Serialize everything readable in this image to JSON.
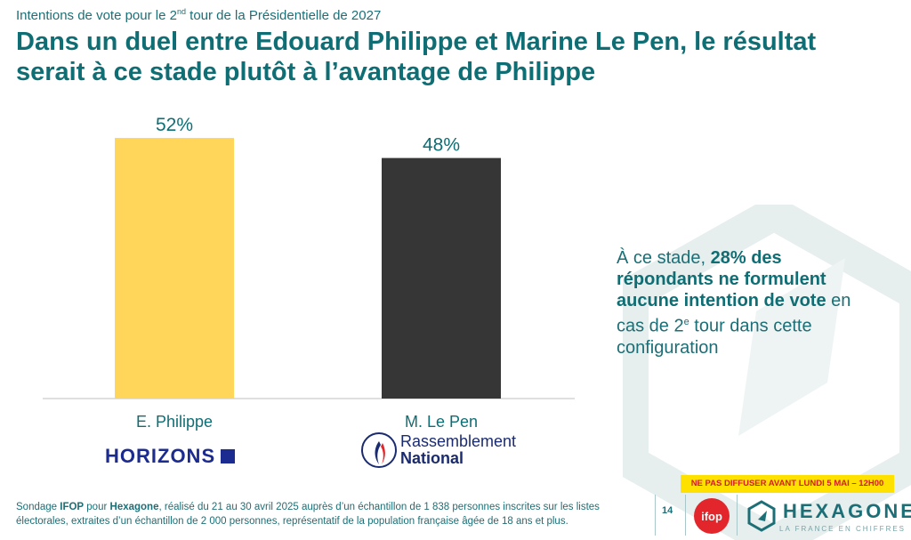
{
  "header": {
    "kicker_prefix": "Intentions de vote pour le 2",
    "kicker_sup": "nd",
    "kicker_suffix": " tour de la Présidentielle de 2027",
    "headline": "Dans un duel entre Edouard Philippe et Marine Le Pen, le résultat serait à ce stade plutôt à l’avantage de Philippe"
  },
  "chart_data": {
    "type": "bar",
    "categories": [
      "E. Philippe",
      "M. Le Pen"
    ],
    "values": [
      52,
      48
    ],
    "value_labels": [
      "52%",
      "48%"
    ],
    "colors": [
      "#ffd65a",
      "#363636"
    ],
    "ylim": [
      0,
      60
    ],
    "grid": false
  },
  "callout": {
    "prefix": "À ce stade, ",
    "bold": "28% des répondants ne formulent aucune intention de vote",
    "mid": " en cas de 2",
    "sup": "e",
    "suffix": " tour dans cette configuration"
  },
  "logos": {
    "horizons": "HORIZONS",
    "rn_line1": "Rassemblement",
    "rn_line2": "National"
  },
  "footer": {
    "prefix": "Sondage ",
    "ifop": "IFOP",
    "pour": " pour ",
    "hexagone": "Hexagone",
    "rest": ", réalisé du 21 au 30 avril 2025 auprès d’un échantillon de 1 838 personnes inscrites sur les listes électorales, extraites d’un échantillon de 2 000 personnes, représentatif de la population française âgée de 18 ans et plus.",
    "embargo": "NE PAS DIFFUSER AVANT LUNDI 5 MAI – 12H00",
    "page_number": "14",
    "ifop_logo": "ifop",
    "brand": "HEXAGONE",
    "brand_tagline": "LA FRANCE EN CHIFFRES"
  },
  "colors": {
    "teal": "#0f6e74",
    "yellow": "#ffd65a",
    "dark": "#363636",
    "ifop_red": "#e3262b",
    "embargo_yellow": "#ffe100"
  }
}
